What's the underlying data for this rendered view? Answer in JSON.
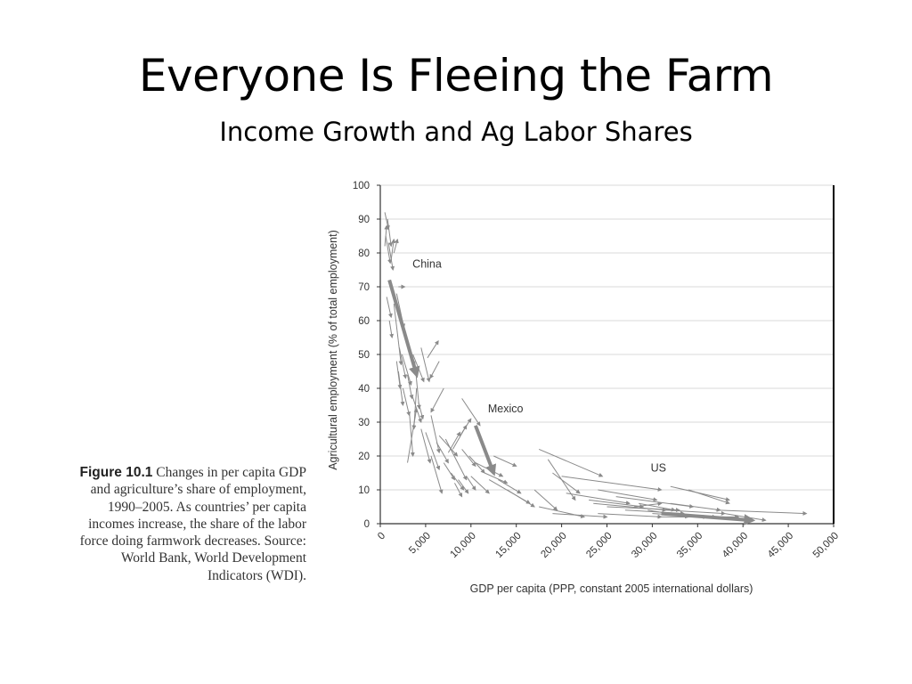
{
  "slide": {
    "title": "Everyone Is Fleeing the Farm",
    "subtitle": "Income Growth and Ag Labor Shares"
  },
  "caption": {
    "label": "Figure 10.1",
    "text": "Changes in per capita GDP and agriculture’s share of employment, 1990–2005. As countries’ per capita incomes increase, the share of the labor force doing farmwork decreases. Source: World Bank, World Development Indicators (WDI)."
  },
  "chart_data": {
    "type": "arrow-scatter",
    "title": "",
    "xlabel": "GDP per capita (PPP, constant 2005 international dollars)",
    "ylabel": "Agricultural employment (% of total employment)",
    "xlim": [
      0,
      50000
    ],
    "ylim": [
      0,
      100
    ],
    "x_ticks": [
      "0",
      "5,000",
      "10,000",
      "15,000",
      "20,000",
      "25,000",
      "30,000",
      "35,000",
      "40,000",
      "45,000",
      "50,000"
    ],
    "y_ticks": [
      "0",
      "10",
      "20",
      "30",
      "40",
      "50",
      "60",
      "70",
      "80",
      "90",
      "100"
    ],
    "grid": true,
    "colors": {
      "arrow": "#8a8a8a",
      "highlight_arrow": "#8a8a8a",
      "grid": "#d9d9d9",
      "axis": "#333333"
    },
    "highlighted": [
      {
        "label": "China",
        "from": [
          1000,
          72
        ],
        "to": [
          4000,
          44
        ]
      },
      {
        "label": "Mexico",
        "from": [
          10500,
          29
        ],
        "to": [
          12500,
          15
        ]
      },
      {
        "label": "US",
        "from": [
          31000,
          3
        ],
        "to": [
          41000,
          1
        ]
      }
    ],
    "arrows": [
      {
        "from": [
          500,
          92
        ],
        "to": [
          900,
          87
        ]
      },
      {
        "from": [
          800,
          90
        ],
        "to": [
          1200,
          82
        ]
      },
      {
        "from": [
          600,
          85
        ],
        "to": [
          1100,
          77
        ]
      },
      {
        "from": [
          900,
          83
        ],
        "to": [
          1400,
          75
        ]
      },
      {
        "from": [
          1500,
          80
        ],
        "to": [
          1900,
          84
        ]
      },
      {
        "from": [
          500,
          82
        ],
        "to": [
          700,
          88
        ]
      },
      {
        "from": [
          1200,
          78
        ],
        "to": [
          1500,
          84
        ]
      },
      {
        "from": [
          700,
          67
        ],
        "to": [
          1200,
          61
        ]
      },
      {
        "from": [
          2000,
          70
        ],
        "to": [
          2700,
          70
        ]
      },
      {
        "from": [
          1800,
          68
        ],
        "to": [
          2600,
          58
        ]
      },
      {
        "from": [
          1000,
          60
        ],
        "to": [
          1300,
          55
        ]
      },
      {
        "from": [
          1500,
          65
        ],
        "to": [
          2300,
          47
        ]
      },
      {
        "from": [
          2100,
          52
        ],
        "to": [
          2800,
          43
        ]
      },
      {
        "from": [
          2400,
          50
        ],
        "to": [
          3400,
          41
        ]
      },
      {
        "from": [
          1800,
          48
        ],
        "to": [
          2200,
          40
        ]
      },
      {
        "from": [
          2000,
          45
        ],
        "to": [
          2500,
          35
        ]
      },
      {
        "from": [
          2500,
          40
        ],
        "to": [
          3200,
          32
        ]
      },
      {
        "from": [
          3000,
          44
        ],
        "to": [
          3500,
          37
        ]
      },
      {
        "from": [
          3600,
          50
        ],
        "to": [
          4800,
          42
        ]
      },
      {
        "from": [
          3800,
          48
        ],
        "to": [
          4300,
          34
        ]
      },
      {
        "from": [
          4500,
          52
        ],
        "to": [
          5400,
          42
        ]
      },
      {
        "from": [
          5200,
          49
        ],
        "to": [
          6400,
          54
        ]
      },
      {
        "from": [
          6500,
          48
        ],
        "to": [
          5500,
          43
        ]
      },
      {
        "from": [
          4000,
          40
        ],
        "to": [
          3700,
          28
        ]
      },
      {
        "from": [
          4200,
          36
        ],
        "to": [
          4700,
          31
        ]
      },
      {
        "from": [
          3200,
          33
        ],
        "to": [
          3600,
          20
        ]
      },
      {
        "from": [
          3500,
          38
        ],
        "to": [
          4500,
          30
        ]
      },
      {
        "from": [
          4500,
          28
        ],
        "to": [
          5500,
          18
        ]
      },
      {
        "from": [
          3000,
          18
        ],
        "to": [
          4000,
          34
        ]
      },
      {
        "from": [
          5600,
          32
        ],
        "to": [
          6500,
          21
        ]
      },
      {
        "from": [
          5000,
          27
        ],
        "to": [
          6500,
          16
        ]
      },
      {
        "from": [
          6200,
          24
        ],
        "to": [
          7500,
          18
        ]
      },
      {
        "from": [
          5600,
          20
        ],
        "to": [
          6800,
          9
        ]
      },
      {
        "from": [
          7000,
          18
        ],
        "to": [
          8200,
          13
        ]
      },
      {
        "from": [
          6500,
          26
        ],
        "to": [
          8500,
          20
        ]
      },
      {
        "from": [
          7200,
          25
        ],
        "to": [
          9500,
          13
        ]
      },
      {
        "from": [
          7800,
          15
        ],
        "to": [
          9200,
          10
        ]
      },
      {
        "from": [
          7500,
          21
        ],
        "to": [
          8800,
          27
        ]
      },
      {
        "from": [
          8800,
          26
        ],
        "to": [
          10000,
          31
        ]
      },
      {
        "from": [
          8000,
          22
        ],
        "to": [
          9500,
          29
        ]
      },
      {
        "from": [
          8200,
          12
        ],
        "to": [
          9000,
          8
        ]
      },
      {
        "from": [
          8600,
          13
        ],
        "to": [
          9700,
          9
        ]
      },
      {
        "from": [
          9000,
          22
        ],
        "to": [
          10500,
          17
        ]
      },
      {
        "from": [
          9500,
          14
        ],
        "to": [
          10500,
          10
        ]
      },
      {
        "from": [
          9800,
          20
        ],
        "to": [
          11500,
          15
        ]
      },
      {
        "from": [
          10000,
          14
        ],
        "to": [
          12000,
          9
        ]
      },
      {
        "from": [
          10500,
          18
        ],
        "to": [
          13500,
          14
        ]
      },
      {
        "from": [
          12500,
          20
        ],
        "to": [
          15000,
          17
        ]
      },
      {
        "from": [
          11500,
          15
        ],
        "to": [
          14000,
          12
        ]
      },
      {
        "from": [
          13000,
          13
        ],
        "to": [
          15500,
          9
        ]
      },
      {
        "from": [
          9000,
          37
        ],
        "to": [
          11000,
          29
        ]
      },
      {
        "from": [
          7000,
          40
        ],
        "to": [
          5600,
          33
        ]
      },
      {
        "from": [
          12000,
          13
        ],
        "to": [
          16500,
          6
        ]
      },
      {
        "from": [
          14000,
          10
        ],
        "to": [
          17000,
          5
        ]
      },
      {
        "from": [
          17500,
          22
        ],
        "to": [
          24500,
          14
        ]
      },
      {
        "from": [
          18500,
          19
        ],
        "to": [
          21500,
          7
        ]
      },
      {
        "from": [
          19000,
          15
        ],
        "to": [
          22000,
          9
        ]
      },
      {
        "from": [
          17000,
          10
        ],
        "to": [
          19500,
          4
        ]
      },
      {
        "from": [
          17500,
          5
        ],
        "to": [
          22500,
          2
        ]
      },
      {
        "from": [
          19000,
          3
        ],
        "to": [
          25000,
          2
        ]
      },
      {
        "from": [
          20000,
          14
        ],
        "to": [
          31000,
          10
        ]
      },
      {
        "from": [
          20500,
          9
        ],
        "to": [
          27500,
          6
        ]
      },
      {
        "from": [
          23000,
          7
        ],
        "to": [
          29000,
          5
        ]
      },
      {
        "from": [
          23500,
          6
        ],
        "to": [
          31500,
          4
        ]
      },
      {
        "from": [
          24000,
          10
        ],
        "to": [
          30500,
          7
        ]
      },
      {
        "from": [
          24000,
          3
        ],
        "to": [
          31000,
          2
        ]
      },
      {
        "from": [
          25000,
          5
        ],
        "to": [
          33000,
          4
        ]
      },
      {
        "from": [
          26000,
          8
        ],
        "to": [
          34500,
          5
        ]
      },
      {
        "from": [
          27000,
          4
        ],
        "to": [
          33500,
          3
        ]
      },
      {
        "from": [
          28000,
          5
        ],
        "to": [
          31000,
          6
        ]
      },
      {
        "from": [
          28500,
          6
        ],
        "to": [
          32500,
          4
        ]
      },
      {
        "from": [
          29500,
          4
        ],
        "to": [
          34000,
          2
        ]
      },
      {
        "from": [
          30000,
          3
        ],
        "to": [
          37000,
          2
        ]
      },
      {
        "from": [
          30500,
          2
        ],
        "to": [
          36000,
          2
        ]
      },
      {
        "from": [
          31500,
          4
        ],
        "to": [
          38000,
          3
        ]
      },
      {
        "from": [
          34000,
          10
        ],
        "to": [
          38500,
          6
        ]
      },
      {
        "from": [
          32000,
          6
        ],
        "to": [
          37500,
          4
        ]
      },
      {
        "from": [
          33000,
          2
        ],
        "to": [
          39500,
          2
        ]
      },
      {
        "from": [
          37000,
          4
        ],
        "to": [
          47000,
          3
        ]
      },
      {
        "from": [
          32000,
          11
        ],
        "to": [
          38500,
          7
        ]
      },
      {
        "from": [
          38000,
          3
        ],
        "to": [
          42500,
          1
        ]
      }
    ]
  }
}
